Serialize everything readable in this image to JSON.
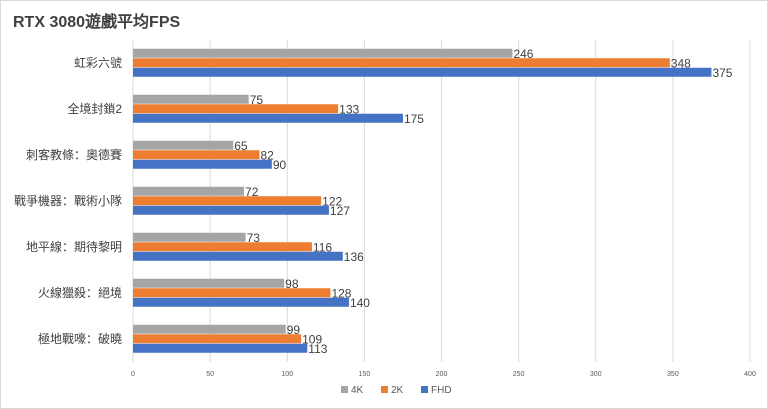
{
  "chart_data": {
    "type": "bar",
    "orientation": "horizontal",
    "title": "RTX 3080遊戲平均FPS",
    "categories": [
      "虹彩六號",
      "全境封鎖2",
      "刺客教條：奧德賽",
      "戰爭機器：戰術小隊",
      "地平線：期待黎明",
      "火線獵殺：絕境",
      "極地戰嚎：破曉"
    ],
    "series": [
      {
        "name": "4K",
        "color": "#a5a5a5",
        "values": [
          246,
          75,
          65,
          72,
          73,
          98,
          99
        ]
      },
      {
        "name": "2K",
        "color": "#ed7d31",
        "values": [
          348,
          133,
          82,
          122,
          116,
          128,
          109
        ]
      },
      {
        "name": "FHD",
        "color": "#4472c4",
        "values": [
          375,
          175,
          90,
          127,
          136,
          140,
          113
        ]
      }
    ],
    "xlim": [
      0,
      400
    ],
    "xticks": [
      0,
      50,
      100,
      150,
      200,
      250,
      300,
      350,
      400
    ],
    "grid": "vertical",
    "legend": "bottom",
    "data_labels": true
  }
}
